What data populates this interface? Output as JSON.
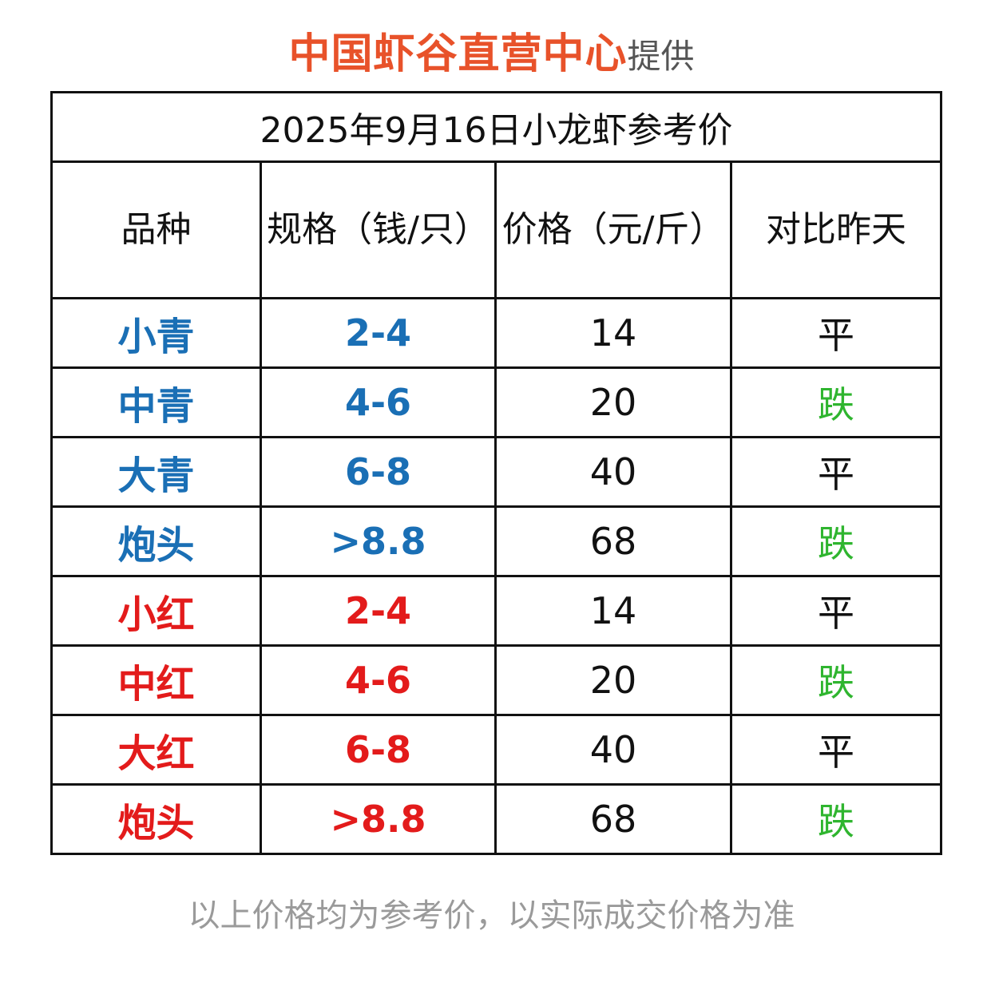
{
  "header": {
    "brand": "中国虾谷直营中心",
    "provide": "提供"
  },
  "table": {
    "title": "2025年9月16日小龙虾参考价",
    "columns": [
      "品种",
      "规格（钱/只）",
      "价格（元/斤）",
      "对比昨天"
    ],
    "rows": [
      {
        "variety": "小青",
        "spec": "2-4",
        "price": "14",
        "change": "平",
        "group": "blue",
        "change_type": "flat"
      },
      {
        "variety": "中青",
        "spec": "4-6",
        "price": "20",
        "change": "跌",
        "group": "blue",
        "change_type": "down"
      },
      {
        "variety": "大青",
        "spec": "6-8",
        "price": "40",
        "change": "平",
        "group": "blue",
        "change_type": "flat"
      },
      {
        "variety": "炮头",
        "spec": ">8.8",
        "price": "68",
        "change": "跌",
        "group": "blue",
        "change_type": "down"
      },
      {
        "variety": "小红",
        "spec": "2-4",
        "price": "14",
        "change": "平",
        "group": "red",
        "change_type": "flat"
      },
      {
        "variety": "中红",
        "spec": "4-6",
        "price": "20",
        "change": "跌",
        "group": "red",
        "change_type": "down"
      },
      {
        "variety": "大红",
        "spec": "6-8",
        "price": "40",
        "change": "平",
        "group": "red",
        "change_type": "flat"
      },
      {
        "variety": "炮头",
        "spec": ">8.8",
        "price": "68",
        "change": "跌",
        "group": "red",
        "change_type": "down"
      }
    ]
  },
  "colors": {
    "brand": "#e8522a",
    "blue": "#1a6fb5",
    "red": "#e31b1b",
    "down": "#2fb52f",
    "flat": "#111111",
    "footer": "#9a9a9a"
  },
  "footer": {
    "note": "以上价格均为参考价，以实际成交价格为准"
  }
}
